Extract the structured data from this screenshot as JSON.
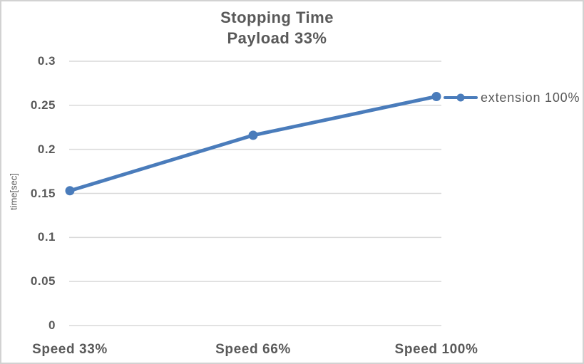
{
  "chart_data": {
    "type": "line",
    "title": "Stopping Time",
    "subtitle": "Payload 33%",
    "categories": [
      "Speed 33%",
      "Speed 66%",
      "Speed 100%"
    ],
    "series": [
      {
        "name": "extension 100%",
        "values": [
          0.153,
          0.216,
          0.26
        ]
      }
    ],
    "xlabel": "",
    "ylabel": "time[sec]",
    "ylim": [
      0,
      0.3
    ],
    "yticks": [
      "0.3",
      "0.25",
      "0.2",
      "0.15",
      "0.1",
      "0.05",
      "0"
    ],
    "grid": "horizontal-on",
    "legend_position": "right-of-last-point",
    "colors": {
      "series_line": "#4A7CBB",
      "grid_line": "#d9d9d9",
      "text": "#595959",
      "border": "#d2d2d2",
      "background": "#ffffff"
    }
  }
}
